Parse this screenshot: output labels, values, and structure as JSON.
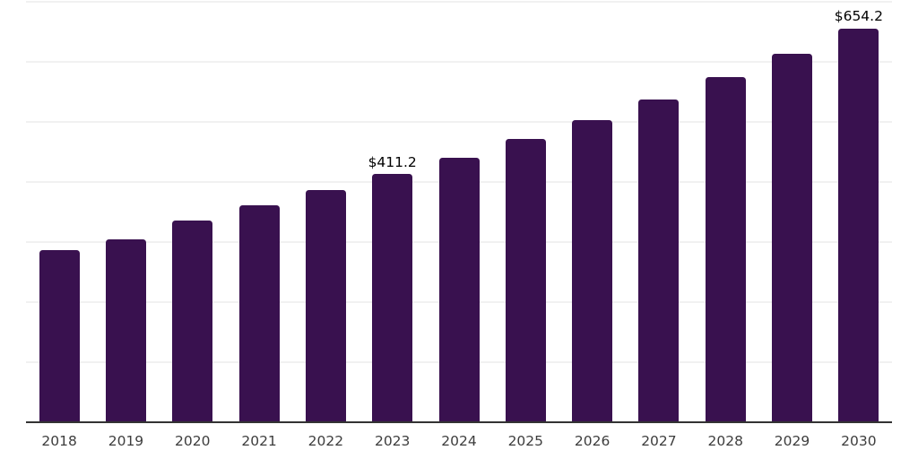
{
  "chart_data": {
    "type": "bar",
    "categories": [
      "2018",
      "2019",
      "2020",
      "2021",
      "2022",
      "2023",
      "2024",
      "2025",
      "2026",
      "2027",
      "2028",
      "2029",
      "2030"
    ],
    "values": [
      285.0,
      303.5,
      334.3,
      359.7,
      385.1,
      411.2,
      439.4,
      469.6,
      501.8,
      536.2,
      573.0,
      612.3,
      654.2
    ],
    "data_labels": [
      null,
      null,
      null,
      null,
      null,
      "$411.2",
      null,
      null,
      null,
      null,
      null,
      null,
      "$654.2"
    ],
    "title": "",
    "xlabel": "",
    "ylabel": "",
    "ylim": [
      0,
      700
    ],
    "gridline_step": 100,
    "grid": true,
    "legend": false,
    "colors": {
      "bar": "#39114F",
      "axis_line": "#333333",
      "gridline": "#f1f1f1",
      "tick_label": "#3d3d3d",
      "value_label": "#000000",
      "background": "#ffffff"
    }
  }
}
